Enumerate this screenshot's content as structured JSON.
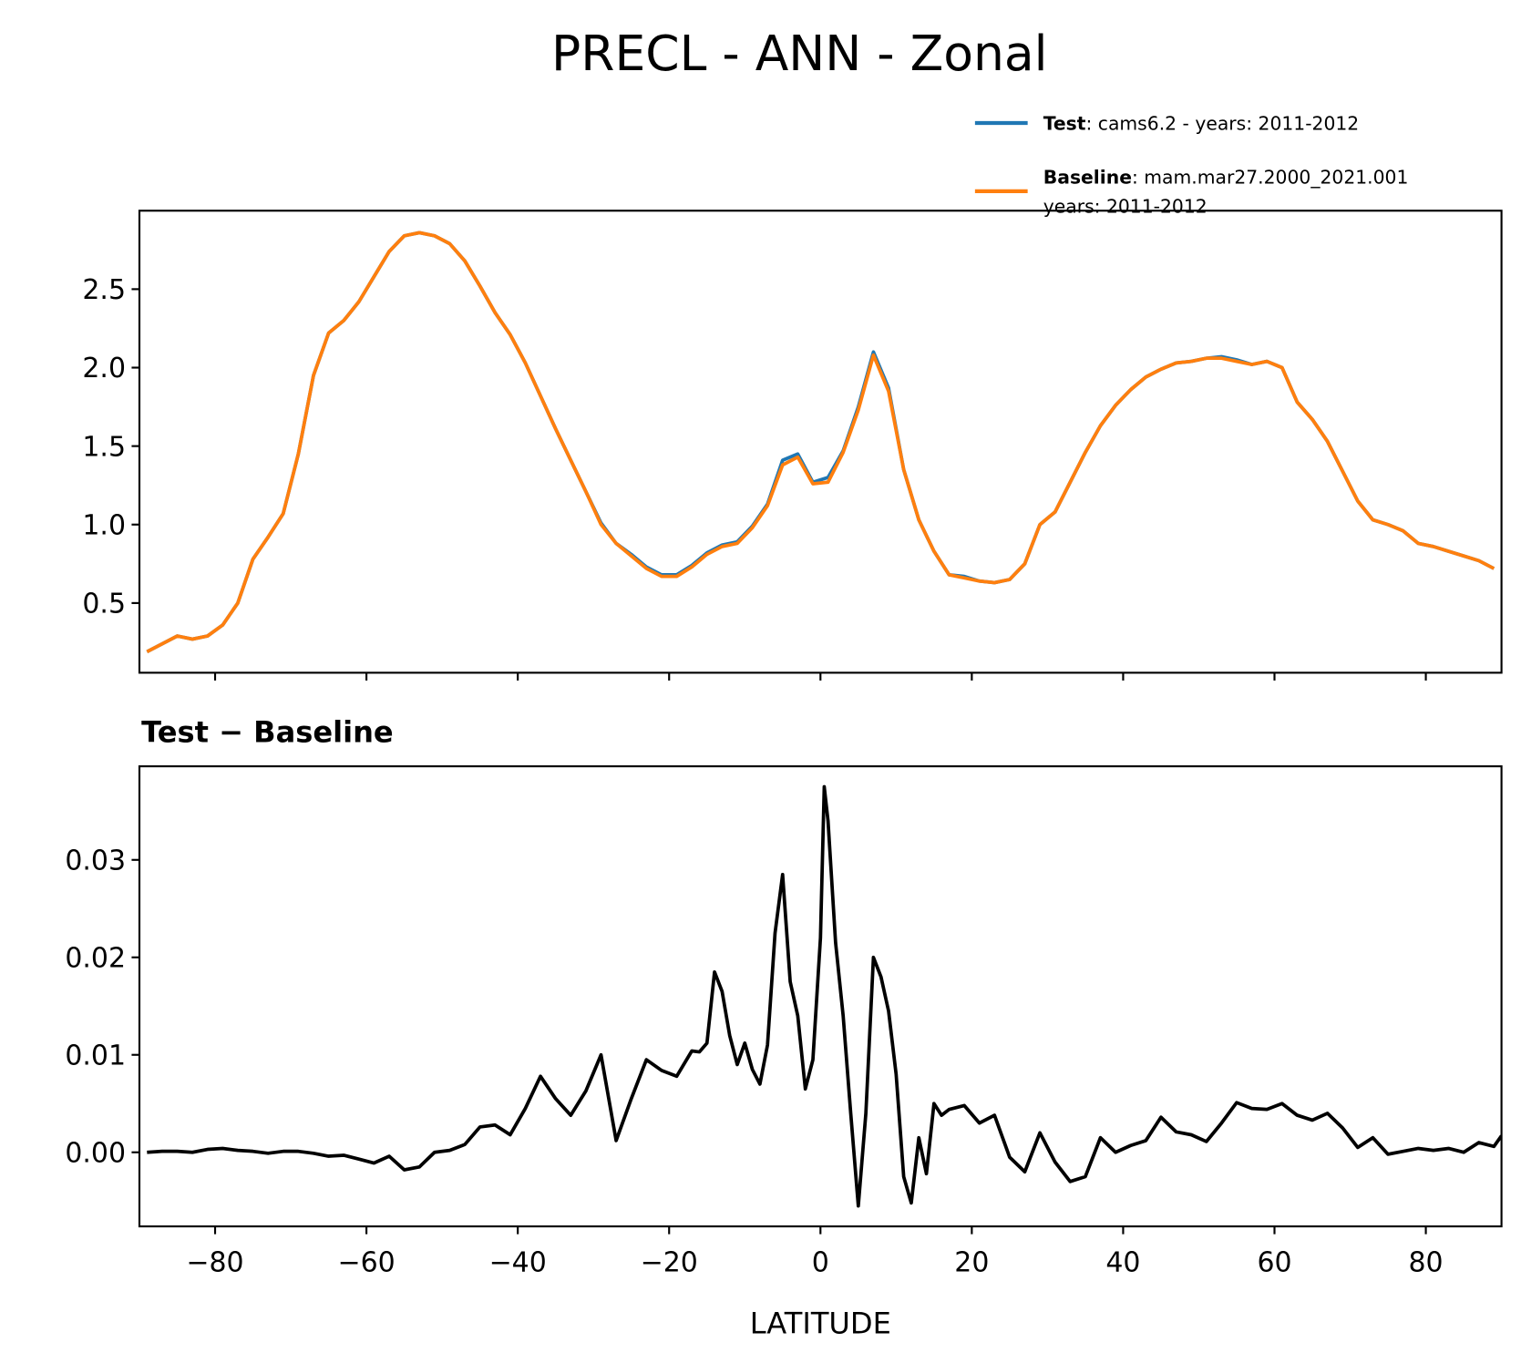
{
  "title": "PRECL - ANN - Zonal",
  "chart_data": [
    {
      "type": "line",
      "legend": "upper right",
      "x": [
        -89,
        -87,
        -85,
        -83,
        -81,
        -79,
        -77,
        -75,
        -73,
        -71,
        -69,
        -67,
        -65,
        -63,
        -61,
        -59,
        -57,
        -55,
        -53,
        -51,
        -49,
        -47,
        -45,
        -43,
        -41,
        -39,
        -37,
        -35,
        -33,
        -31,
        -29,
        -27,
        -25,
        -23,
        -21,
        -19,
        -17,
        -15,
        -13,
        -11,
        -9,
        -7,
        -5,
        -3,
        -1,
        1,
        3,
        5,
        7,
        9,
        11,
        13,
        15,
        17,
        19,
        21,
        23,
        25,
        27,
        29,
        31,
        33,
        35,
        37,
        39,
        41,
        43,
        45,
        47,
        49,
        51,
        53,
        55,
        57,
        59,
        61,
        63,
        65,
        67,
        69,
        71,
        73,
        75,
        77,
        79,
        81,
        83,
        85,
        87,
        89
      ],
      "series": [
        {
          "name": "Test",
          "description": [
            ": cams6.2 - years: 2011-2012"
          ],
          "color": "#1f77b4",
          "values": [
            0.19,
            0.24,
            0.29,
            0.27,
            0.29,
            0.36,
            0.5,
            0.78,
            0.92,
            1.07,
            1.45,
            1.95,
            2.22,
            2.3,
            2.42,
            2.58,
            2.74,
            2.84,
            2.86,
            2.84,
            2.79,
            2.68,
            2.52,
            2.35,
            2.21,
            2.03,
            1.82,
            1.61,
            1.41,
            1.21,
            1.01,
            0.88,
            0.81,
            0.73,
            0.68,
            0.68,
            0.74,
            0.82,
            0.87,
            0.89,
            0.99,
            1.13,
            1.41,
            1.45,
            1.27,
            1.3,
            1.47,
            1.75,
            2.1,
            1.87,
            1.35,
            1.03,
            0.83,
            0.68,
            0.67,
            0.64,
            0.63,
            0.65,
            0.75,
            1.0,
            1.08,
            1.27,
            1.46,
            1.63,
            1.76,
            1.86,
            1.94,
            1.99,
            2.03,
            2.04,
            2.06,
            2.07,
            2.05,
            2.02,
            2.04,
            2.0,
            1.78,
            1.67,
            1.53,
            1.34,
            1.15,
            1.03,
            1.0,
            0.96,
            0.88,
            0.86,
            0.83,
            0.8,
            0.77,
            0.72
          ]
        },
        {
          "name": "Baseline",
          "description": [
            ": mam.mar27.2000_2021.001",
            "years: 2011-2012"
          ],
          "color": "#ff7f0e",
          "values": [
            0.19,
            0.24,
            0.29,
            0.27,
            0.29,
            0.36,
            0.5,
            0.78,
            0.92,
            1.07,
            1.45,
            1.95,
            2.22,
            2.3,
            2.42,
            2.58,
            2.74,
            2.84,
            2.86,
            2.84,
            2.79,
            2.68,
            2.52,
            2.35,
            2.21,
            2.03,
            1.82,
            1.61,
            1.41,
            1.21,
            1.0,
            0.88,
            0.8,
            0.72,
            0.67,
            0.67,
            0.73,
            0.81,
            0.86,
            0.88,
            0.98,
            1.12,
            1.38,
            1.43,
            1.26,
            1.27,
            1.46,
            1.73,
            2.08,
            1.85,
            1.35,
            1.03,
            0.83,
            0.68,
            0.66,
            0.64,
            0.63,
            0.65,
            0.75,
            1.0,
            1.08,
            1.27,
            1.46,
            1.63,
            1.76,
            1.86,
            1.94,
            1.99,
            2.03,
            2.04,
            2.06,
            2.06,
            2.04,
            2.02,
            2.04,
            2.0,
            1.78,
            1.67,
            1.53,
            1.34,
            1.15,
            1.03,
            1.0,
            0.96,
            0.88,
            0.86,
            0.83,
            0.8,
            0.77,
            0.72
          ]
        }
      ],
      "xlim": [
        -90,
        90
      ],
      "xticks": [
        -80,
        -60,
        -40,
        -20,
        0,
        20,
        40,
        60,
        80
      ],
      "show_xtick_labels": false,
      "ylim": [
        0.056,
        3.0
      ],
      "yticks": [
        0.5,
        {
          "value": 1,
          "label": "1.0"
        },
        1.5,
        {
          "value": 2,
          "label": "2.0"
        },
        2.5
      ]
    },
    {
      "type": "line",
      "title": "Test − Baseline",
      "xlabel": "LATITUDE",
      "x": [
        -89,
        -87,
        -85,
        -83,
        -81,
        -79,
        -77,
        -75,
        -73,
        -71,
        -69,
        -67,
        -65,
        -63,
        -61,
        -59,
        -57,
        -55,
        -53,
        -51,
        -49,
        -47,
        -45,
        -43,
        -41,
        -39,
        -37,
        -35,
        -33,
        -31,
        -29,
        -27,
        -25,
        -23,
        -21,
        -19,
        -17,
        -16,
        -15,
        -14,
        -13,
        -12,
        -11,
        -10,
        -9,
        -8,
        -7,
        -6,
        -5,
        -4,
        -3,
        -2,
        -1,
        0,
        0.5,
        1,
        2,
        3,
        4,
        5,
        6,
        7,
        8,
        9,
        10,
        11,
        12,
        13,
        14,
        15,
        16,
        17,
        19,
        21,
        23,
        25,
        27,
        29,
        31,
        33,
        35,
        37,
        39,
        41,
        43,
        45,
        47,
        49,
        51,
        53,
        55,
        57,
        59,
        61,
        63,
        65,
        67,
        69,
        71,
        73,
        75,
        77,
        79,
        81,
        83,
        85,
        87,
        89,
        90
      ],
      "series": [
        {
          "color": "#000000",
          "values": [
            0,
            0.0001,
            0.0001,
            0,
            0.0003,
            0.0004,
            0.0002,
            0.0001,
            -0.0001,
            0.0001,
            0.0001,
            -0.0001,
            -0.0004,
            -0.0003,
            -0.0007,
            -0.0011,
            -0.0004,
            -0.0018,
            -0.0015,
            0,
            0.0002,
            0.0008,
            0.0026,
            0.0028,
            0.0018,
            0.0045,
            0.0078,
            0.0055,
            0.0038,
            0.0063,
            0.01,
            0.0012,
            0.0055,
            0.0095,
            0.0084,
            0.0078,
            0.0104,
            0.0103,
            0.0112,
            0.0185,
            0.0165,
            0.012,
            0.009,
            0.0112,
            0.0085,
            0.007,
            0.011,
            0.0225,
            0.0285,
            0.0175,
            0.014,
            0.0065,
            0.0095,
            0.022,
            0.0375,
            0.034,
            0.0215,
            0.014,
            0.004,
            -0.0055,
            0.004,
            0.02,
            0.018,
            0.0145,
            0.008,
            -0.0025,
            -0.0052,
            0.0015,
            -0.0022,
            0.005,
            0.0038,
            0.0044,
            0.0048,
            0.003,
            0.0038,
            -0.0005,
            -0.002,
            0.002,
            -0.001,
            -0.003,
            -0.0025,
            0.0015,
            0,
            0.0007,
            0.0012,
            0.0036,
            0.0021,
            0.0018,
            0.0011,
            0.003,
            0.0051,
            0.0045,
            0.0044,
            0.005,
            0.0038,
            0.0033,
            0.004,
            0.0025,
            0.0005,
            0.0015,
            -0.0002,
            0.0001,
            0.0004,
            0.0002,
            0.0004,
            0,
            0.001,
            0.0006,
            0.0017
          ]
        }
      ],
      "xlim": [
        -90,
        90
      ],
      "xticks": [
        {
          "value": -80,
          "label": "−80"
        },
        {
          "value": -60,
          "label": "−60"
        },
        {
          "value": -40,
          "label": "−40"
        },
        {
          "value": -20,
          "label": "−20"
        },
        0,
        20,
        40,
        60,
        80
      ],
      "show_xtick_labels": true,
      "ylim": [
        -0.0076,
        0.0396
      ],
      "yticks": [
        {
          "value": 0,
          "label": "0.00"
        },
        0.01,
        0.02,
        0.03
      ]
    }
  ]
}
